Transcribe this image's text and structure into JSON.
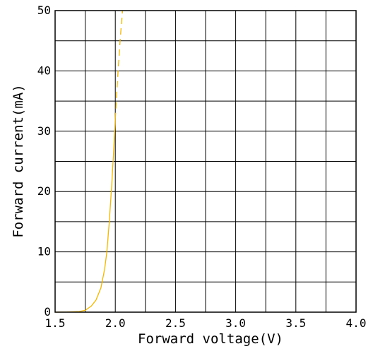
{
  "chart_data": {
    "type": "line",
    "title": "",
    "xlabel": "Forward voltage(V)",
    "ylabel": "Forward current(mA)",
    "xlim": [
      1.5,
      4.0
    ],
    "ylim": [
      0,
      50
    ],
    "x_ticks": [
      "1.5",
      "2.0",
      "2.5",
      "3.0",
      "3.5",
      "4.0"
    ],
    "y_ticks": [
      "0",
      "10",
      "20",
      "30",
      "40",
      "50"
    ],
    "x_minor_step": 0.25,
    "y_minor_step": 5,
    "grid": true,
    "legend": "none",
    "series": [
      {
        "color": "#f5b800",
        "line_style": "solid",
        "points": [
          [
            1.5,
            0
          ],
          [
            1.6,
            0.02
          ],
          [
            1.7,
            0.1
          ],
          [
            1.75,
            0.3
          ],
          [
            1.8,
            1.0
          ],
          [
            1.84,
            2.0
          ],
          [
            1.88,
            4.0
          ],
          [
            1.91,
            7.0
          ],
          [
            1.93,
            10.0
          ],
          [
            1.95,
            15.0
          ],
          [
            1.97,
            21.0
          ],
          [
            1.99,
            28.0
          ],
          [
            2.0,
            32.0
          ]
        ]
      },
      {
        "color": "#f5b800",
        "line_style": "dashed",
        "points": [
          [
            2.0,
            32.0
          ],
          [
            2.02,
            39.0
          ],
          [
            2.04,
            45.0
          ],
          [
            2.06,
            50.0
          ]
        ]
      }
    ]
  }
}
